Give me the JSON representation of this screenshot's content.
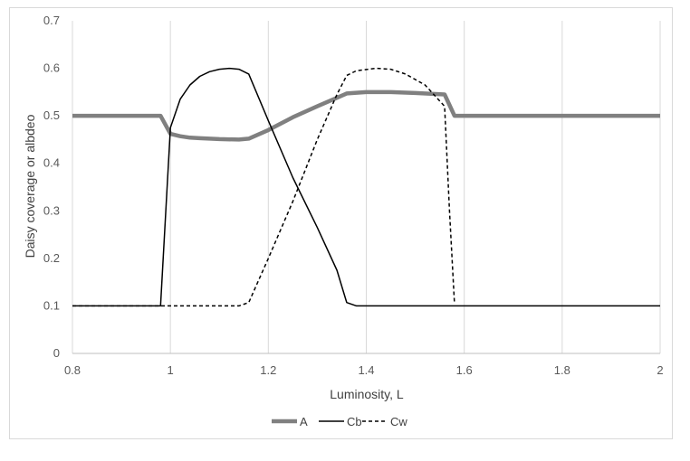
{
  "chart_data": {
    "type": "line",
    "title": "",
    "xlabel": "Luminosity, L",
    "ylabel": "Daisy coverage or albdeo",
    "xlim": [
      0.8,
      2.0
    ],
    "ylim": [
      0,
      0.7
    ],
    "x_ticks": [
      "0.8",
      "1",
      "1.2",
      "1.4",
      "1.6",
      "1.8",
      "2"
    ],
    "y_ticks": [
      "0",
      "0.1",
      "0.2",
      "0.3",
      "0.4",
      "0.5",
      "0.6",
      "0.7"
    ],
    "grid": "vertical",
    "legend": "bottom",
    "series": [
      {
        "name": "A",
        "color": "#808080",
        "style": "solid-thick",
        "points": [
          [
            0.8,
            0.5
          ],
          [
            0.98,
            0.5
          ],
          [
            1.0,
            0.462
          ],
          [
            1.02,
            0.457
          ],
          [
            1.04,
            0.454
          ],
          [
            1.06,
            0.453
          ],
          [
            1.1,
            0.451
          ],
          [
            1.14,
            0.45
          ],
          [
            1.16,
            0.452
          ],
          [
            1.2,
            0.47
          ],
          [
            1.25,
            0.497
          ],
          [
            1.3,
            0.52
          ],
          [
            1.34,
            0.538
          ],
          [
            1.36,
            0.547
          ],
          [
            1.4,
            0.55
          ],
          [
            1.45,
            0.55
          ],
          [
            1.5,
            0.548
          ],
          [
            1.56,
            0.545
          ],
          [
            1.58,
            0.5
          ],
          [
            2.0,
            0.5
          ]
        ]
      },
      {
        "name": "Cb",
        "color": "#000000",
        "style": "solid",
        "points": [
          [
            0.8,
            0.1
          ],
          [
            0.98,
            0.1
          ],
          [
            1.0,
            0.475
          ],
          [
            1.02,
            0.535
          ],
          [
            1.04,
            0.565
          ],
          [
            1.06,
            0.583
          ],
          [
            1.08,
            0.593
          ],
          [
            1.1,
            0.598
          ],
          [
            1.12,
            0.6
          ],
          [
            1.14,
            0.598
          ],
          [
            1.16,
            0.588
          ],
          [
            1.2,
            0.49
          ],
          [
            1.25,
            0.37
          ],
          [
            1.3,
            0.265
          ],
          [
            1.34,
            0.175
          ],
          [
            1.36,
            0.107
          ],
          [
            1.38,
            0.1
          ],
          [
            2.0,
            0.1
          ]
        ]
      },
      {
        "name": "Cw",
        "color": "#000000",
        "style": "dashed",
        "points": [
          [
            0.8,
            0.1
          ],
          [
            1.14,
            0.1
          ],
          [
            1.16,
            0.107
          ],
          [
            1.2,
            0.2
          ],
          [
            1.25,
            0.32
          ],
          [
            1.3,
            0.45
          ],
          [
            1.34,
            0.545
          ],
          [
            1.36,
            0.585
          ],
          [
            1.38,
            0.595
          ],
          [
            1.42,
            0.6
          ],
          [
            1.45,
            0.598
          ],
          [
            1.48,
            0.588
          ],
          [
            1.52,
            0.565
          ],
          [
            1.56,
            0.52
          ],
          [
            1.57,
            0.3
          ],
          [
            1.58,
            0.105
          ]
        ]
      }
    ]
  }
}
